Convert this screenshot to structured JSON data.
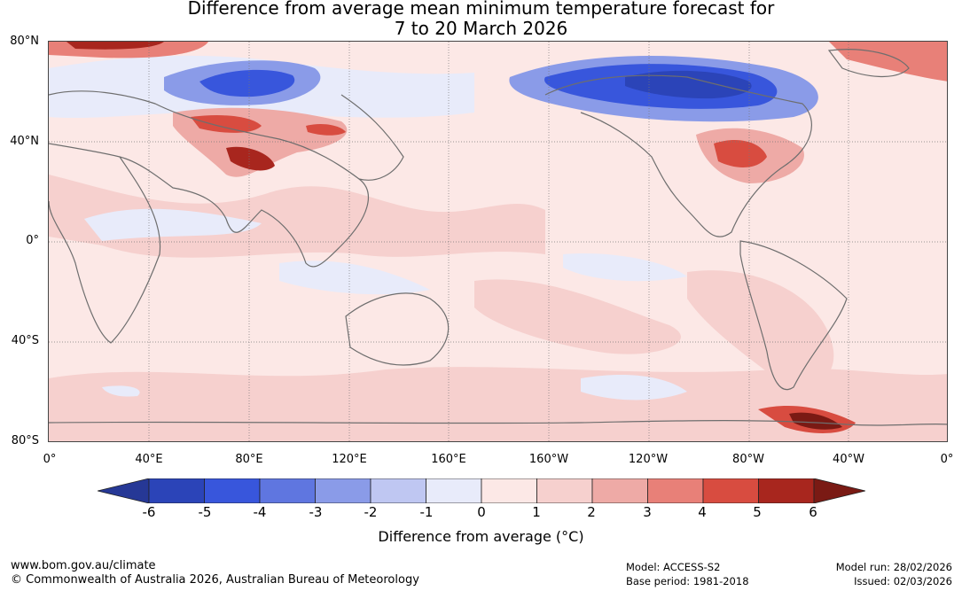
{
  "title": {
    "line1": "Difference from average mean minimum temperature forecast for",
    "line2": "7 to 20 March 2026"
  },
  "map": {
    "lat_labels": [
      "80°N",
      "40°N",
      "0°",
      "40°S",
      "80°S"
    ],
    "lon_labels": [
      "0°",
      "40°E",
      "80°E",
      "120°E",
      "160°E",
      "160°W",
      "120°W",
      "80°W",
      "40°W",
      "0°"
    ]
  },
  "colorbar": {
    "ticks": [
      "-6",
      "-5",
      "-4",
      "-3",
      "-2",
      "-1",
      "0",
      "1",
      "2",
      "3",
      "4",
      "5",
      "6"
    ],
    "colors": [
      "#263896",
      "#2b44b8",
      "#3856dc",
      "#5f76e0",
      "#8a9be8",
      "#bfc7f2",
      "#e8ebfa",
      "#fce8e6",
      "#f6d0ce",
      "#eeaaa6",
      "#e88078",
      "#d84c40",
      "#a8261e",
      "#7a1a14"
    ],
    "label": "Difference from average (°C)"
  },
  "footer": {
    "website": "www.bom.gov.au/climate",
    "copyright": "© Commonwealth of Australia 2026, Australian Bureau of Meteorology",
    "model": "Model: ACCESS-S2",
    "base_period": "Base period: 1981-2018",
    "model_run": "Model run: 28/02/2026",
    "issued": "Issued: 02/03/2026"
  }
}
